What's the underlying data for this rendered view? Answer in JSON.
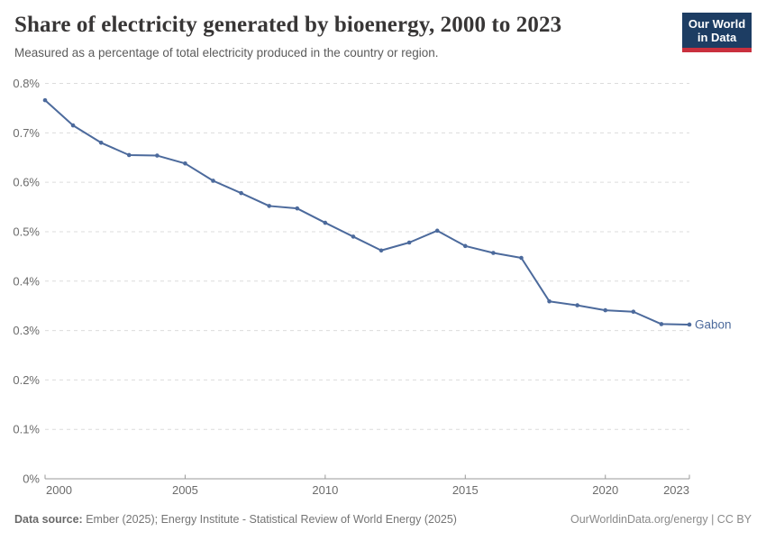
{
  "header": {
    "title": "Share of electricity generated by bioenergy, 2000 to 2023",
    "subtitle": "Measured as a percentage of total electricity produced in the country or region."
  },
  "logo": {
    "line1": "Our World",
    "line2": "in Data",
    "bg_color": "#1d3d63",
    "accent_color": "#c9303e"
  },
  "chart_data": {
    "type": "line",
    "title": "Share of electricity generated by bioenergy, 2000 to 2023",
    "xlabel": "",
    "ylabel": "",
    "x": [
      2000,
      2001,
      2002,
      2003,
      2004,
      2005,
      2006,
      2007,
      2008,
      2009,
      2010,
      2011,
      2012,
      2013,
      2014,
      2015,
      2016,
      2017,
      2018,
      2019,
      2020,
      2021,
      2022,
      2023
    ],
    "series": [
      {
        "name": "Gabon",
        "color": "#4c6a9c",
        "values": [
          0.766,
          0.715,
          0.68,
          0.655,
          0.654,
          0.638,
          0.603,
          0.578,
          0.552,
          0.547,
          0.518,
          0.49,
          0.462,
          0.478,
          0.502,
          0.471,
          0.457,
          0.447,
          0.359,
          0.351,
          0.341,
          0.338,
          0.313,
          0.312
        ]
      }
    ],
    "entity_label": "Gabon",
    "ylim": [
      0,
      0.8
    ],
    "yticks": [
      0,
      0.1,
      0.2,
      0.3,
      0.4,
      0.5,
      0.6,
      0.7,
      0.8
    ],
    "ytick_labels": [
      "0%",
      "0.1%",
      "0.2%",
      "0.3%",
      "0.4%",
      "0.5%",
      "0.6%",
      "0.7%",
      "0.8%"
    ],
    "xticks": [
      2000,
      2005,
      2010,
      2015,
      2020,
      2023
    ],
    "xtick_labels": [
      "2000",
      "2005",
      "2010",
      "2015",
      "2020",
      "2023"
    ],
    "grid": "horizontal-dashed",
    "legend_position": "end-of-line-label",
    "marker": "dot"
  },
  "footer": {
    "datasource_label": "Data source:",
    "datasource_text": "Ember (2025); Energy Institute - Statistical Review of World Energy (2025)",
    "credit": "OurWorldinData.org/energy | CC BY"
  },
  "colors": {
    "line": "#4c6a9c",
    "grid": "#dcdcdc",
    "axis": "#999999",
    "tick_text": "#6b6b6b",
    "title_text": "#383636",
    "subtitle_text": "#5b5b5b"
  }
}
